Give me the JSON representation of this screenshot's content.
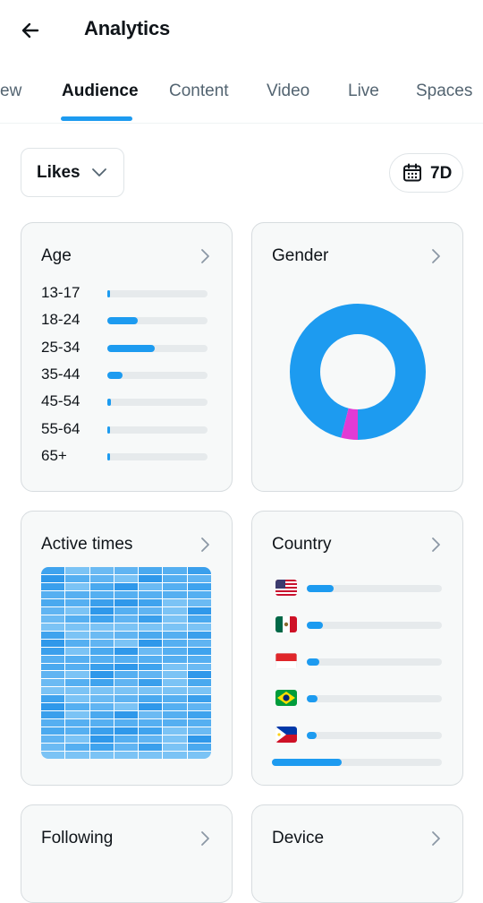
{
  "header": {
    "title": "Analytics",
    "back_icon": "arrow-left-icon"
  },
  "tabs": [
    {
      "label": "ew",
      "active": false
    },
    {
      "label": "Audience",
      "active": true
    },
    {
      "label": "Content",
      "active": false
    },
    {
      "label": "Video",
      "active": false
    },
    {
      "label": "Live",
      "active": false
    },
    {
      "label": "Spaces",
      "active": false
    }
  ],
  "filters": {
    "metric": "Likes",
    "range": "7D"
  },
  "colors": {
    "accent": "#1d9bf0",
    "secondary": "#e13bd5",
    "track": "#e6eaec"
  },
  "cards": {
    "age": {
      "title": "Age",
      "rows": [
        {
          "label": "13-17",
          "value": 0.01
        },
        {
          "label": "18-24",
          "value": 0.3
        },
        {
          "label": "25-34",
          "value": 0.47
        },
        {
          "label": "35-44",
          "value": 0.15
        },
        {
          "label": "45-54",
          "value": 0.04
        },
        {
          "label": "55-64",
          "value": 0.01
        },
        {
          "label": "65+",
          "value": 0.005
        }
      ]
    },
    "gender": {
      "title": "Gender",
      "segments": [
        {
          "value": 0.96,
          "color": "#1d9bf0"
        },
        {
          "value": 0.04,
          "color": "#e13bd5"
        }
      ]
    },
    "active_times": {
      "title": "Active times"
    },
    "country": {
      "title": "Country",
      "rows": [
        {
          "flag": "us-flag-icon",
          "value": 0.2
        },
        {
          "flag": "mexico-flag-icon",
          "value": 0.12
        },
        {
          "flag": "indonesia-flag-icon",
          "value": 0.09
        },
        {
          "flag": "brazil-flag-icon",
          "value": 0.08
        },
        {
          "flag": "philippines-flag-icon",
          "value": 0.07
        }
      ],
      "scroll_position": 0.41
    },
    "following": {
      "title": "Following"
    },
    "device": {
      "title": "Device"
    }
  }
}
